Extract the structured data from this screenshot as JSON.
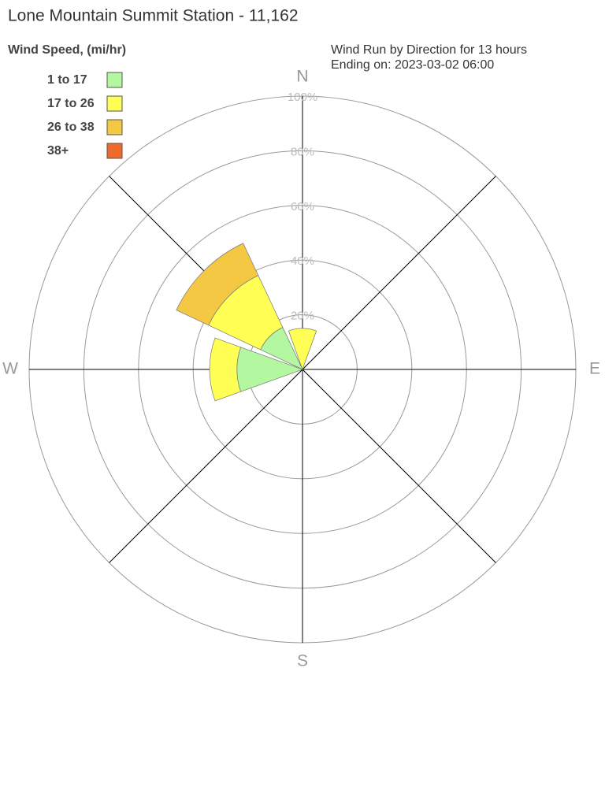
{
  "chart_data": {
    "type": "windrose",
    "title": "Lone Mountain Summit Station - 11,162",
    "legend_title": "Wind Speed, (mi/hr)",
    "subtitle": [
      "Wind Run by Direction for 13 hours",
      "Ending on: 2023-03-02 06:00"
    ],
    "categories": [
      "N",
      null,
      "E",
      null,
      "S",
      null,
      "W",
      null
    ],
    "series": [
      {
        "name": "1 to 17",
        "color": "#b3f7a0",
        "values": [
          0,
          0,
          0,
          0,
          0,
          0,
          24,
          17
        ]
      },
      {
        "name": "17 to 26",
        "color": "#ffff55",
        "values": [
          15,
          0,
          0,
          0,
          0,
          0,
          10,
          21
        ]
      },
      {
        "name": "26 to 38",
        "color": "#f5c843",
        "values": [
          0,
          0,
          0,
          0,
          0,
          0,
          0,
          13
        ]
      },
      {
        "name": "38+",
        "color": "#ef6a2a",
        "values": [
          0,
          0,
          0,
          0,
          0,
          0,
          0,
          0
        ]
      }
    ],
    "rlim": [
      0,
      100
    ],
    "rticks": [
      {
        "value": 20,
        "label": "20%"
      },
      {
        "value": 40,
        "label": "40%"
      },
      {
        "value": 60,
        "label": "60%"
      },
      {
        "value": 80,
        "label": "80%"
      },
      {
        "value": 100,
        "label": "100%"
      }
    ]
  }
}
